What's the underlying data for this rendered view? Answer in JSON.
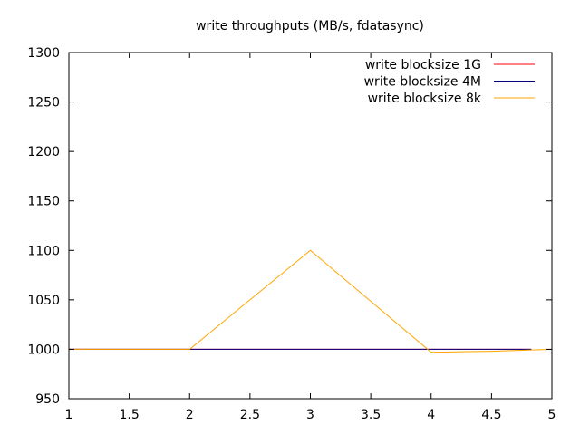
{
  "chart_data": {
    "type": "line",
    "title": "write throughputs (MB/s, fdatasync)",
    "xlabel": "",
    "ylabel": "",
    "xlim": [
      1,
      5
    ],
    "ylim": [
      950,
      1300
    ],
    "xticks": [
      1,
      1.5,
      2,
      2.5,
      3,
      3.5,
      4,
      4.5,
      5
    ],
    "xtick_labels": [
      "1",
      "1.5",
      "2",
      "2.5",
      "3",
      "3.5",
      "4",
      "4.5",
      "5"
    ],
    "yticks": [
      950,
      1000,
      1050,
      1100,
      1150,
      1200,
      1250,
      1300
    ],
    "ytick_labels": [
      "950",
      "1000",
      "1050",
      "1100",
      "1150",
      "1200",
      "1250",
      "1300"
    ],
    "grid": false,
    "legend_position": "top-right",
    "series": [
      {
        "name": "write blocksize 1G",
        "color": "#ff0000",
        "x": [
          1,
          2,
          3,
          4,
          4.83
        ],
        "y": [
          1000,
          1000,
          1000,
          1000,
          1000
        ]
      },
      {
        "name": "write blocksize 4M",
        "color": "#000080",
        "x": [
          1,
          2,
          3,
          4,
          4.83
        ],
        "y": [
          1000,
          1000,
          1000,
          1000,
          1000
        ]
      },
      {
        "name": "write blocksize 8k",
        "color": "#ffa500",
        "x": [
          1,
          2,
          3,
          4,
          4.5,
          5
        ],
        "y": [
          1000,
          1000,
          1100,
          997,
          998,
          1000
        ]
      }
    ]
  }
}
